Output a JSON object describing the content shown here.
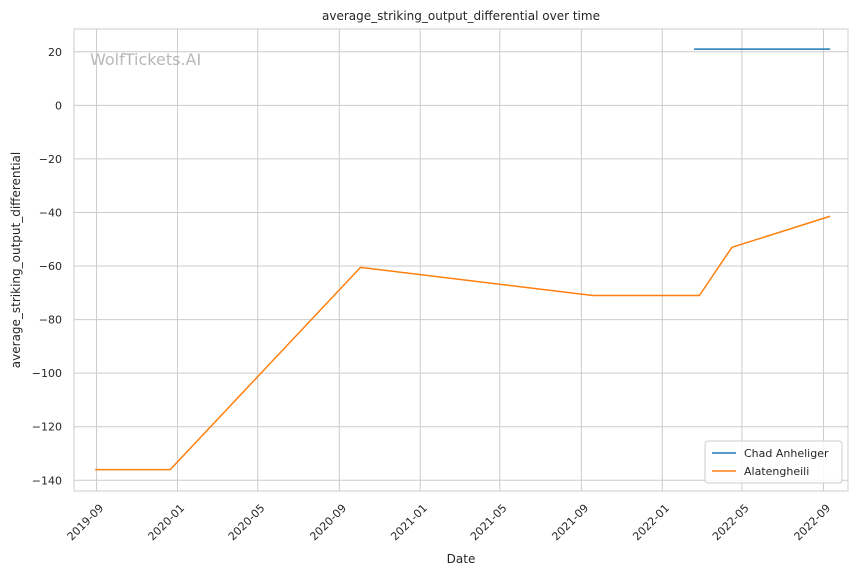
{
  "chart_data": {
    "type": "line",
    "title": "average_striking_output_differential over time",
    "xlabel": "Date",
    "ylabel": "average_striking_output_differential",
    "watermark": "WolfTickets.AI",
    "xlim": [
      "2019-07-29",
      "2022-10-08"
    ],
    "ylim": [
      -144,
      28.5
    ],
    "grid": true,
    "legend_position": "bottom-right",
    "x_ticks": [
      "2019-09",
      "2020-01",
      "2020-05",
      "2020-09",
      "2021-01",
      "2021-05",
      "2021-09",
      "2022-01",
      "2022-05",
      "2022-09"
    ],
    "y_ticks": [
      20,
      0,
      -20,
      -40,
      -60,
      -80,
      -100,
      -120,
      -140
    ],
    "y_tick_labels": [
      "20",
      "0",
      "−20",
      "−40",
      "−60",
      "−80",
      "−100",
      "−120",
      "−140"
    ],
    "series": [
      {
        "name": "Chad Anheliger",
        "color": "#1f77b4",
        "x": [
          "2022-02-19",
          "2022-09-10"
        ],
        "y": [
          21,
          21
        ]
      },
      {
        "name": "Alatengheili",
        "color": "#ff7f0e",
        "x": [
          "2019-08-31",
          "2019-12-21",
          "2020-10-03",
          "2021-09-18",
          "2022-02-26",
          "2022-04-16",
          "2022-09-10"
        ],
        "y": [
          -136,
          -136,
          -60.5,
          -71,
          -71,
          -53,
          -41.5
        ]
      }
    ]
  }
}
